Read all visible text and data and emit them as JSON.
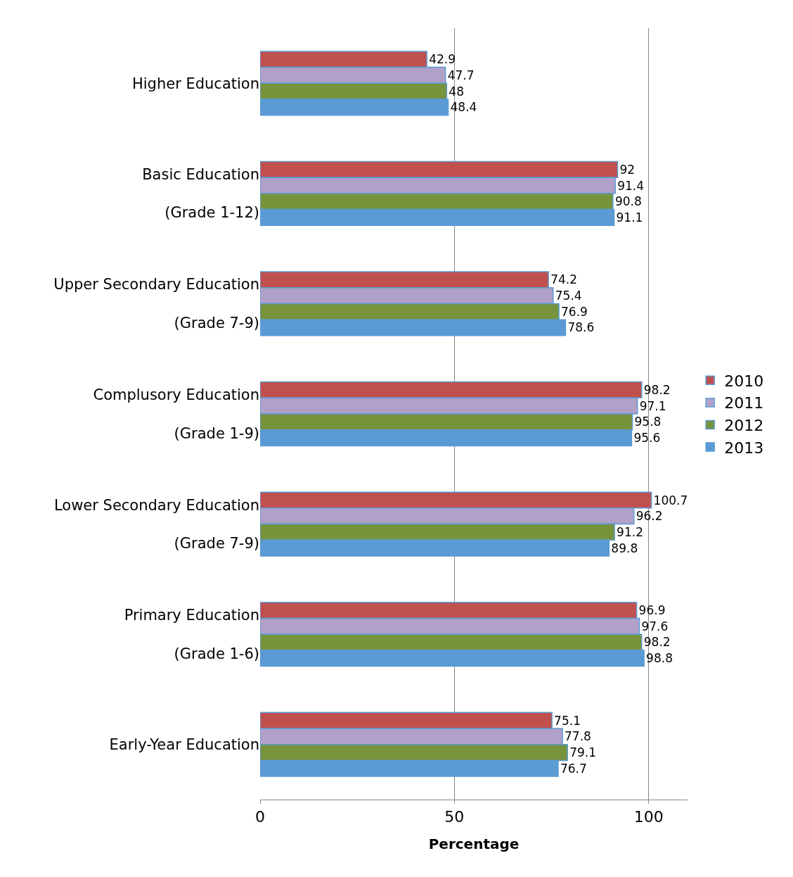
{
  "chart_data": {
    "type": "bar",
    "orientation": "horizontal",
    "xlabel": "Percentage",
    "categories": [
      "Higher Education",
      "Basic Education\n(Grade 1-12)",
      "Upper Secondary Education\n(Grade 7-9)",
      "Complusory Education\n(Grade 1-9)",
      "Lower Secondary Education\n(Grade 7-9)",
      "Primary Education\n(Grade 1-6)",
      "Early-Year Education"
    ],
    "series": [
      {
        "name": "2010",
        "color": "#c0504d",
        "values": [
          42.9,
          92,
          74.2,
          98.2,
          100.7,
          96.9,
          75.1
        ]
      },
      {
        "name": "2011",
        "color": "#b1a0c7",
        "values": [
          47.7,
          91.4,
          75.4,
          97.1,
          96.2,
          97.6,
          77.8
        ]
      },
      {
        "name": "2012",
        "color": "#77933c",
        "values": [
          48,
          90.8,
          76.9,
          95.8,
          91.2,
          98.2,
          79.1
        ]
      },
      {
        "name": "2013",
        "color": "#5b9bd5",
        "values": [
          48.4,
          91.1,
          78.6,
          95.6,
          89.8,
          98.8,
          76.7
        ]
      }
    ],
    "xlim": [
      0,
      110
    ],
    "xticks": [
      0,
      50,
      100
    ],
    "grid": "x",
    "legend": "right",
    "data_labels": true
  }
}
